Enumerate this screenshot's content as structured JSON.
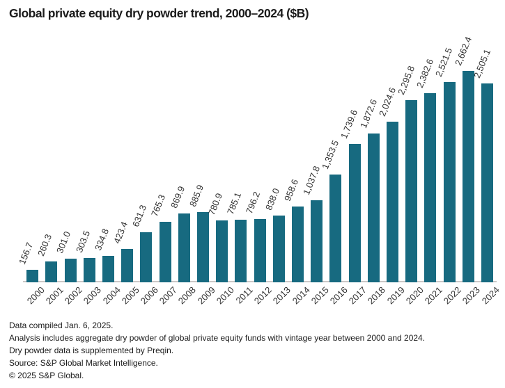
{
  "title": "Global private equity dry powder trend, 2000–2024 ($B)",
  "chart_data": {
    "type": "bar",
    "title": "Global private equity dry powder trend, 2000–2024 ($B)",
    "categories": [
      "2000",
      "2001",
      "2002",
      "2003",
      "2004",
      "2005",
      "2006",
      "2007",
      "2008",
      "2009",
      "2010",
      "2011",
      "2012",
      "2013",
      "2014",
      "2015",
      "2016",
      "2017",
      "2018",
      "2019",
      "2020",
      "2021",
      "2022",
      "2023",
      "2024"
    ],
    "values": [
      156.7,
      260.3,
      301.0,
      303.5,
      334.8,
      423.4,
      631.3,
      765.3,
      869.9,
      885.9,
      780.9,
      785.1,
      796.2,
      838.0,
      958.6,
      1037.8,
      1353.5,
      1739.6,
      1872.6,
      2024.6,
      2295.8,
      2382.6,
      2521.5,
      2662.4,
      2505.1
    ],
    "value_labels": [
      "156.7",
      "260.3",
      "301.0",
      "303.5",
      "334.8",
      "423.4",
      "631.3",
      "765.3",
      "869.9",
      "885.9",
      "780.9",
      "785.1",
      "796.2",
      "838.0",
      "958.6",
      "1,037.8",
      "1,353.5",
      "1,739.6",
      "1,872.6",
      "2,024.6",
      "2,295.8",
      "2,382.6",
      "2,521.5",
      "2,662.4",
      "2,505.1"
    ],
    "xlabel": "",
    "ylabel": "",
    "ylim": [
      0,
      2800
    ],
    "grid": false,
    "legend": "none",
    "bar_color": "#176a80",
    "axis_line_color": "#cbc7c6",
    "value_label_rotation_deg": -68,
    "x_tick_rotation_deg": -45
  },
  "footnotes": [
    "Data compiled Jan. 6, 2025.",
    "Analysis includes aggregate dry powder of global private equity funds with vintage year between 2000 and 2024.",
    "Dry powder data is supplemented by Preqin.",
    "Source: S&P Global Market Intelligence.",
    "© 2025 S&P Global."
  ]
}
